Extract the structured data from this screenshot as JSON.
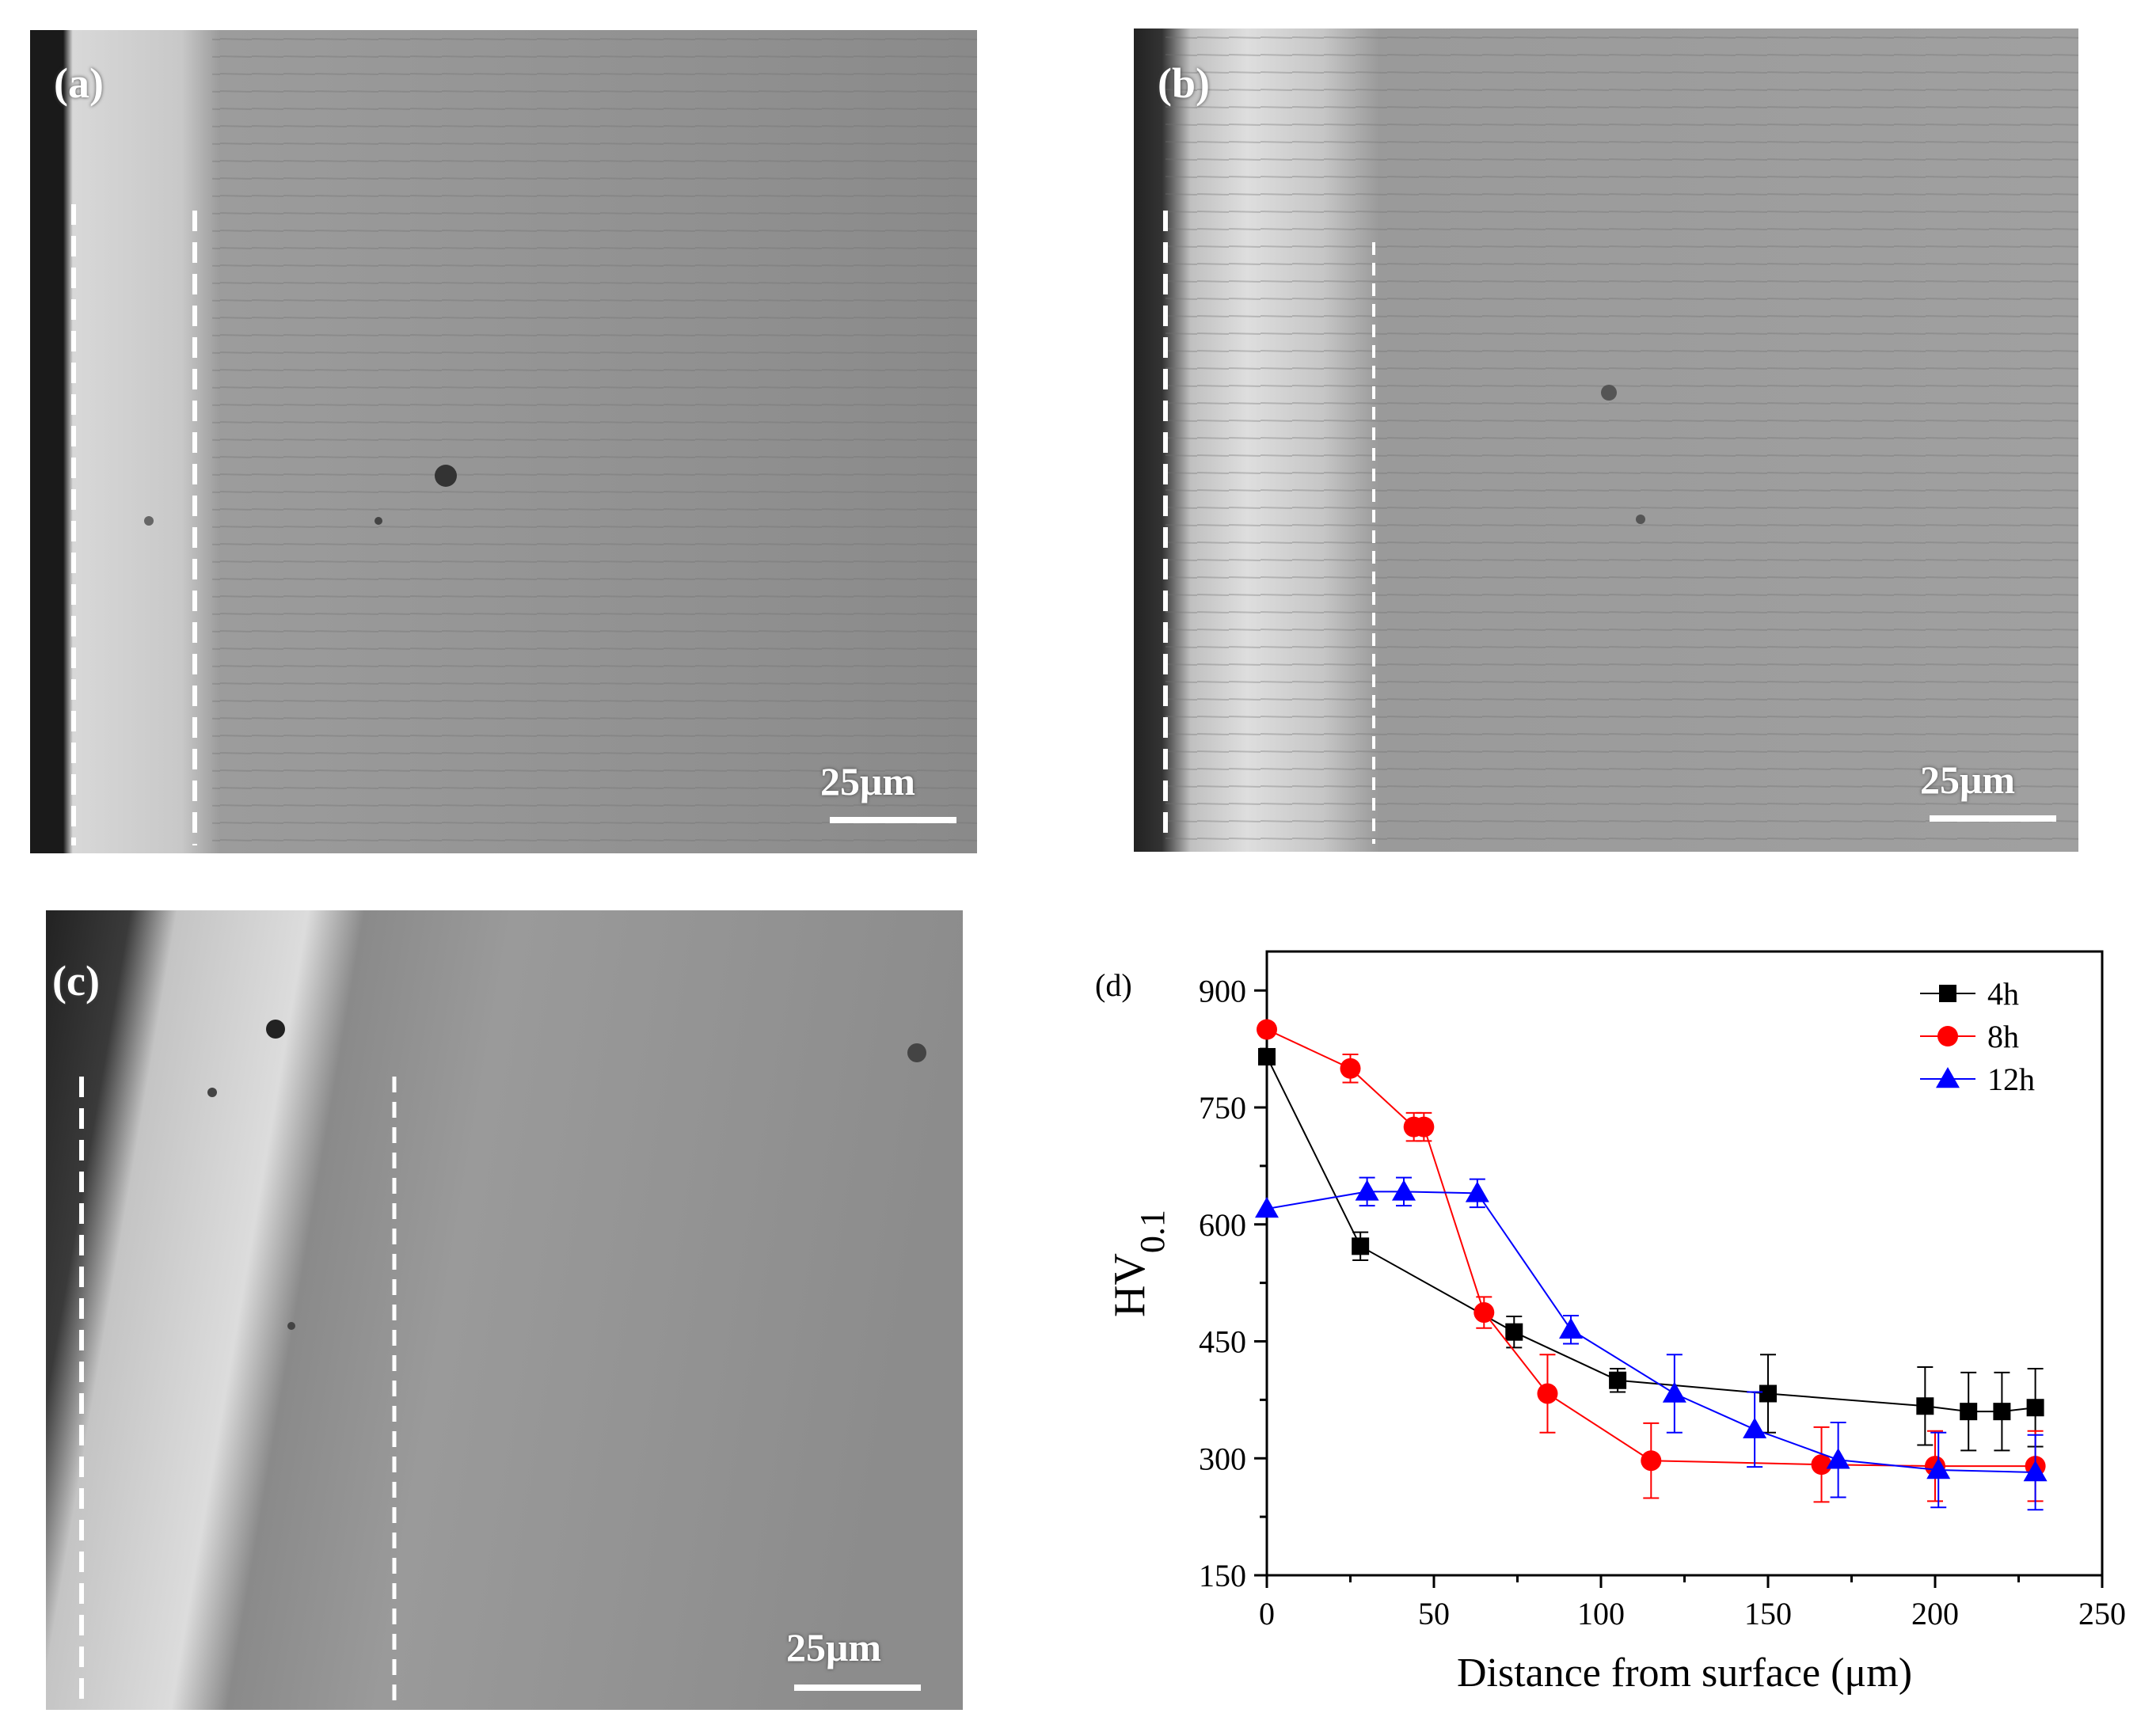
{
  "panels": [
    {
      "label": "(a)",
      "scale_label": "25μm"
    },
    {
      "label": "(b)",
      "scale_label": "25μm"
    },
    {
      "label": "(c)",
      "scale_label": "25μm"
    }
  ],
  "chart_data": {
    "type": "line",
    "panel_label": "(d)",
    "title": "",
    "xlabel": "Distance from surface (μm)",
    "ylabel_main": "HV",
    "ylabel_sub": "0.1",
    "xlim": [
      0,
      250
    ],
    "ylim": [
      150,
      950
    ],
    "xticks": [
      0,
      50,
      100,
      150,
      200,
      250
    ],
    "yticks": [
      150,
      300,
      450,
      600,
      750,
      900
    ],
    "grid": false,
    "legend_position": "top-right",
    "series": [
      {
        "name": "4h",
        "color": "#000000",
        "marker": "square",
        "points": [
          {
            "x": 0,
            "y": 815,
            "err": 0
          },
          {
            "x": 28,
            "y": 572,
            "err": 18
          },
          {
            "x": 74,
            "y": 462,
            "err": 20
          },
          {
            "x": 105,
            "y": 400,
            "err": 15
          },
          {
            "x": 150,
            "y": 383,
            "err": 50
          },
          {
            "x": 197,
            "y": 367,
            "err": 50
          },
          {
            "x": 210,
            "y": 360,
            "err": 50
          },
          {
            "x": 220,
            "y": 360,
            "err": 50
          },
          {
            "x": 230,
            "y": 365,
            "err": 50
          }
        ]
      },
      {
        "name": "8h",
        "color": "#ff0000",
        "marker": "circle",
        "points": [
          {
            "x": 0,
            "y": 850,
            "err": 0
          },
          {
            "x": 25,
            "y": 800,
            "err": 18
          },
          {
            "x": 44,
            "y": 725,
            "err": 18
          },
          {
            "x": 47,
            "y": 725,
            "err": 18
          },
          {
            "x": 65,
            "y": 487,
            "err": 20
          },
          {
            "x": 84,
            "y": 383,
            "err": 50
          },
          {
            "x": 115,
            "y": 297,
            "err": 48
          },
          {
            "x": 166,
            "y": 292,
            "err": 48
          },
          {
            "x": 200,
            "y": 290,
            "err": 45
          },
          {
            "x": 230,
            "y": 290,
            "err": 45
          }
        ]
      },
      {
        "name": "12h",
        "color": "#0000ff",
        "marker": "triangle",
        "points": [
          {
            "x": 0,
            "y": 620,
            "err": 0
          },
          {
            "x": 30,
            "y": 642,
            "err": 18
          },
          {
            "x": 41,
            "y": 642,
            "err": 18
          },
          {
            "x": 63,
            "y": 640,
            "err": 18
          },
          {
            "x": 91,
            "y": 465,
            "err": 18
          },
          {
            "x": 122,
            "y": 383,
            "err": 50
          },
          {
            "x": 146,
            "y": 337,
            "err": 48
          },
          {
            "x": 171,
            "y": 298,
            "err": 48
          },
          {
            "x": 201,
            "y": 285,
            "err": 48
          },
          {
            "x": 230,
            "y": 282,
            "err": 48
          }
        ]
      }
    ]
  }
}
